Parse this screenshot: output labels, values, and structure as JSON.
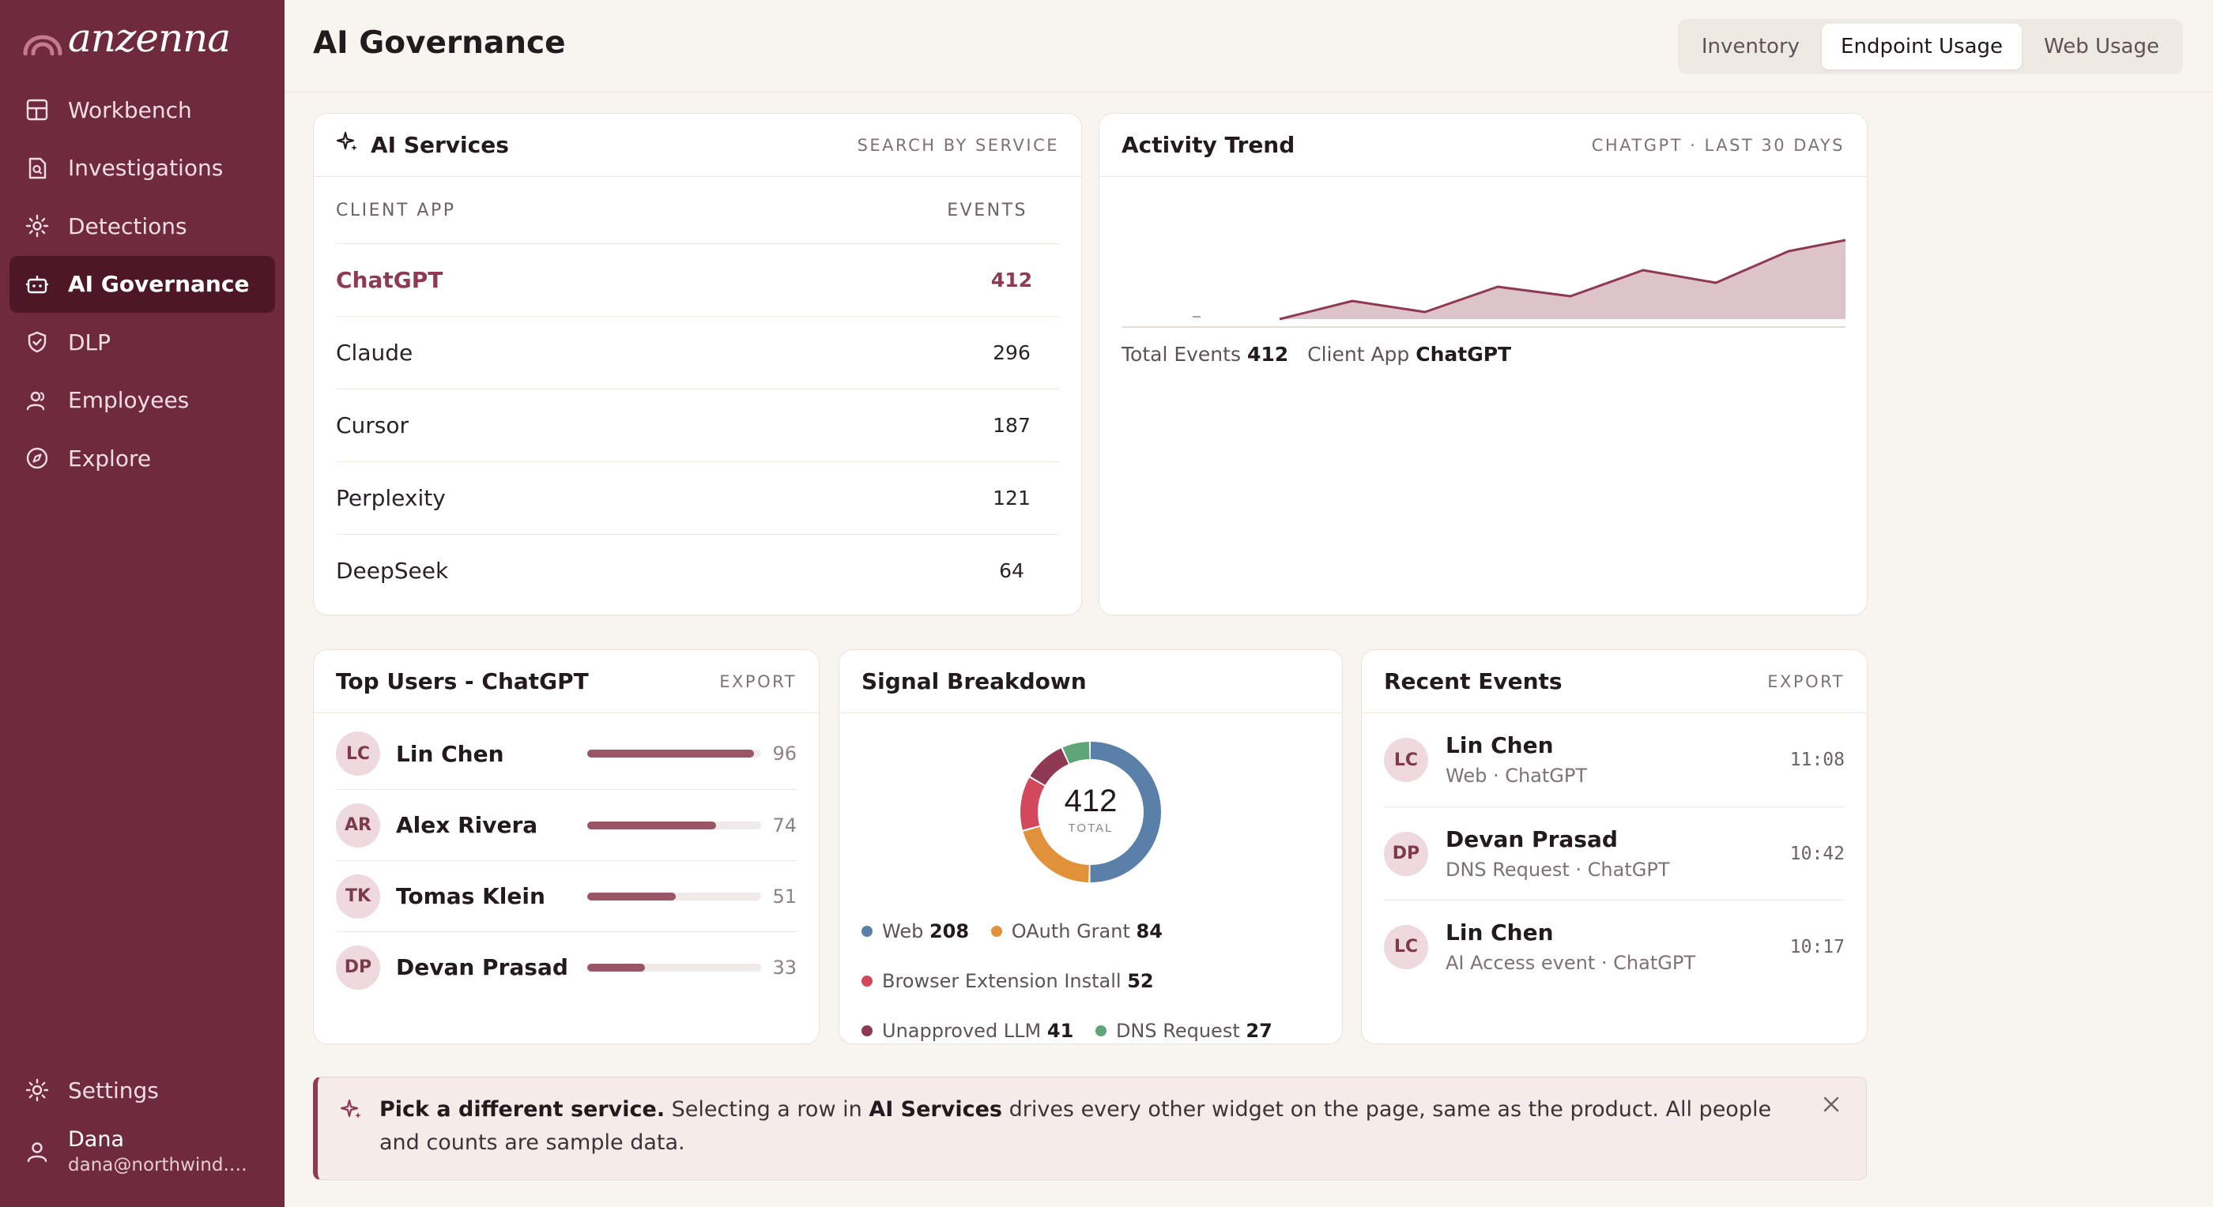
{
  "brand": {
    "name": "anzenna"
  },
  "sidebar": {
    "items": [
      {
        "label": "Workbench",
        "icon": "layout-icon"
      },
      {
        "label": "Investigations",
        "icon": "file-search-icon"
      },
      {
        "label": "Detections",
        "icon": "radar-icon"
      },
      {
        "label": "AI Governance",
        "icon": "robot-icon",
        "active": true
      },
      {
        "label": "DLP",
        "icon": "shield-check-icon"
      },
      {
        "label": "Employees",
        "icon": "users-icon"
      },
      {
        "label": "Explore",
        "icon": "compass-icon"
      }
    ],
    "settings_label": "Settings",
    "user": {
      "name": "Dana",
      "email": "dana@northwind.ex..."
    }
  },
  "header": {
    "title": "AI Governance",
    "tabs": [
      "Inventory",
      "Endpoint Usage",
      "Web Usage"
    ],
    "active_tab": "Endpoint Usage"
  },
  "ai_services": {
    "title": "AI Services",
    "action": "SEARCH BY SERVICE",
    "col_app": "CLIENT APP",
    "col_events": "EVENTS",
    "rows": [
      {
        "name": "ChatGPT",
        "events": "412",
        "selected": true
      },
      {
        "name": "Claude",
        "events": "296"
      },
      {
        "name": "Cursor",
        "events": "187"
      },
      {
        "name": "Perplexity",
        "events": "121"
      },
      {
        "name": "DeepSeek",
        "events": "64"
      }
    ]
  },
  "activity_trend": {
    "title": "Activity Trend",
    "subtitle": "CHATGPT · LAST 30 DAYS",
    "total_label": "Total Events",
    "total_value": "412",
    "app_label": "Client App",
    "app_value": "ChatGPT",
    "accent": "#8e3a52"
  },
  "top_users": {
    "title": "Top Users - ChatGPT",
    "action": "EXPORT",
    "users": [
      {
        "initials": "LC",
        "name": "Lin Chen",
        "count": "96",
        "fraction": 0.96
      },
      {
        "initials": "AR",
        "name": "Alex Rivera",
        "count": "74",
        "fraction": 0.74
      },
      {
        "initials": "TK",
        "name": "Tomas Klein",
        "count": "51",
        "fraction": 0.51
      },
      {
        "initials": "DP",
        "name": "Devan Prasad",
        "count": "33",
        "fraction": 0.33
      }
    ]
  },
  "signal_breakdown": {
    "title": "Signal Breakdown",
    "total": "412",
    "total_label": "TOTAL",
    "segments": [
      {
        "label": "Web",
        "value": 208,
        "color": "#5a7fa8"
      },
      {
        "label": "OAuth Grant",
        "value": 84,
        "color": "#e0913a"
      },
      {
        "label": "Browser Extension Install",
        "value": 52,
        "color": "#d4485c"
      },
      {
        "label": "Unapproved LLM",
        "value": 41,
        "color": "#8e3a52"
      },
      {
        "label": "DNS Request",
        "value": 27,
        "color": "#5fa57a"
      }
    ]
  },
  "recent_events": {
    "title": "Recent Events",
    "action": "EXPORT",
    "events": [
      {
        "initials": "LC",
        "name": "Lin Chen",
        "detail": "Web · ChatGPT",
        "time": "11:08"
      },
      {
        "initials": "DP",
        "name": "Devan Prasad",
        "detail": "DNS Request · ChatGPT",
        "time": "10:42"
      },
      {
        "initials": "LC",
        "name": "Lin Chen",
        "detail": "AI Access event · ChatGPT",
        "time": "10:17"
      }
    ]
  },
  "banner": {
    "strong": "Pick a different service.",
    "text_a": "Selecting a row in",
    "strong2": "AI Services",
    "text_b": "drives every other widget on the page, same as the product. All people and counts are sample data."
  }
}
